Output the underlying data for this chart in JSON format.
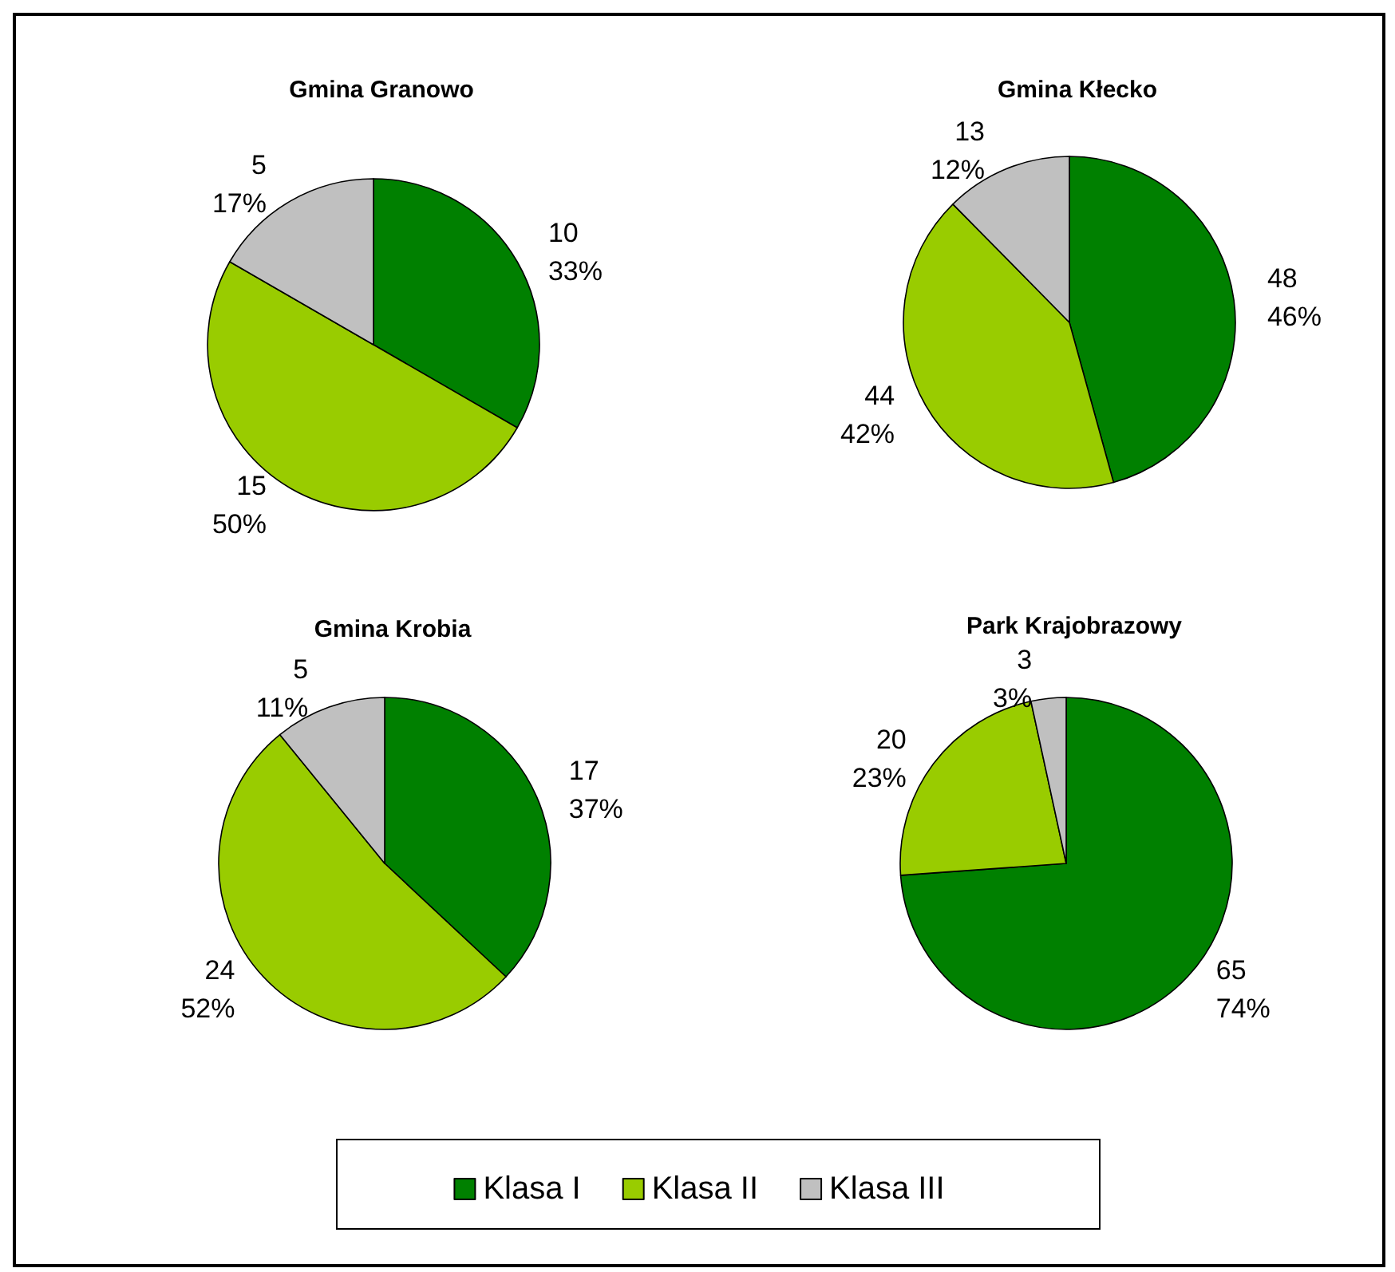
{
  "chart_data": {
    "type": "pie",
    "categories": [
      "Klasa I",
      "Klasa II",
      "Klasa III"
    ],
    "colors": [
      "#008000",
      "#99cc00",
      "#c0c0c0"
    ],
    "legend": "bottom",
    "series": [
      {
        "name": "Gmina Granowo",
        "values": [
          10,
          15,
          5
        ],
        "value_labels": [
          "10\n33%",
          "15\n50%",
          "5\n17%"
        ]
      },
      {
        "name": "Gmina Kłecko",
        "values": [
          48,
          44,
          13
        ],
        "value_labels": [
          "48\n46%",
          "44\n42%",
          "13\n12%"
        ]
      },
      {
        "name": "Gmina Krobia",
        "values": [
          17,
          24,
          5
        ],
        "value_labels": [
          "17\n37%",
          "24\n52%",
          "5\n11%"
        ]
      },
      {
        "name": "Park Krajobrazowy",
        "values": [
          65,
          20,
          3
        ],
        "value_labels": [
          "65\n74%",
          "20\n23%",
          "3\n3%"
        ]
      }
    ]
  }
}
